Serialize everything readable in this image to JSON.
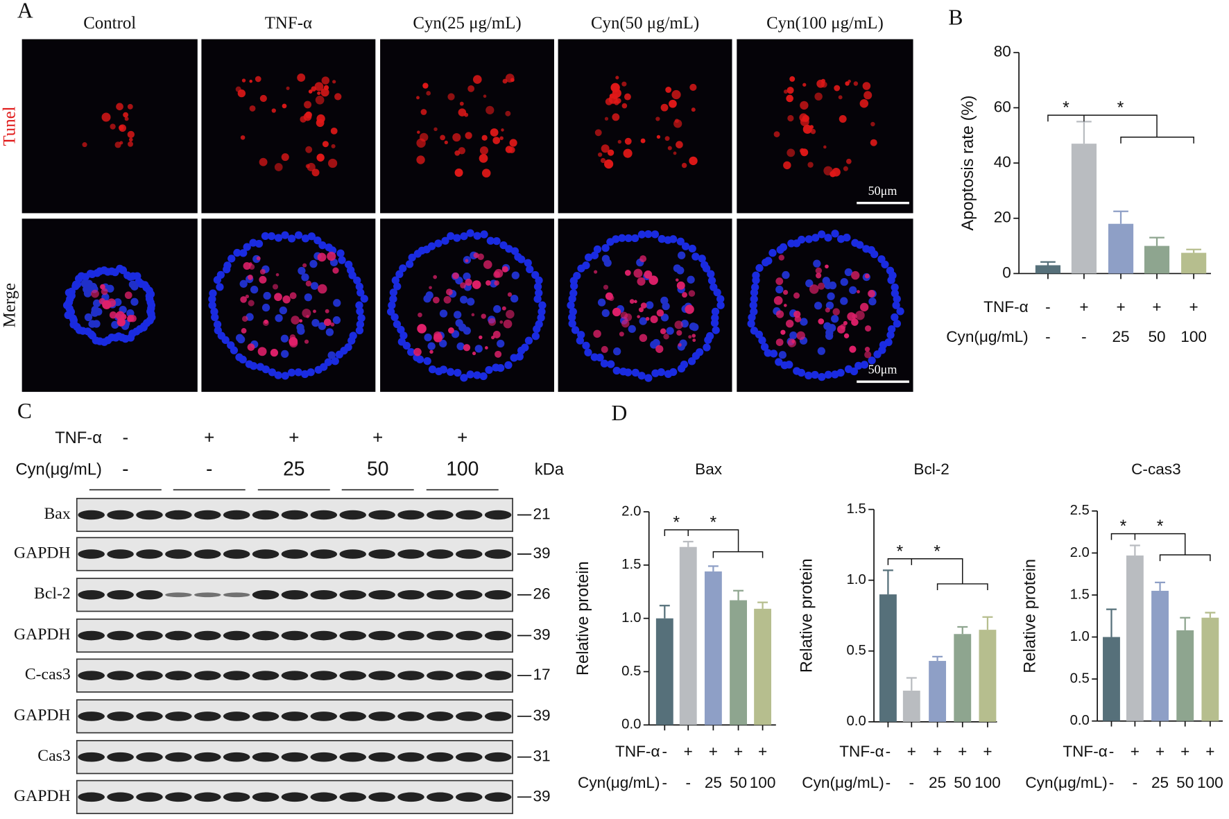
{
  "panel_a": {
    "label": "A",
    "columns": [
      "Control",
      "TNF-α",
      "Cyn(25 μg/mL)",
      "Cyn(50 μg/mL)",
      "Cyn(100 μg/mL)"
    ],
    "rows": [
      "Tunel",
      "Merge"
    ],
    "scale_bars": [
      "50μm",
      "50μm"
    ]
  },
  "panel_c": {
    "label": "C",
    "conditions": [
      {
        "name": "TNF-α",
        "labels": [
          "-",
          "+",
          "+",
          "+",
          "+"
        ]
      },
      {
        "name": "Cyn(μg/mL)",
        "labels": [
          "-",
          "-",
          "25",
          "50",
          "100"
        ]
      }
    ],
    "unit": "kDa",
    "blots": [
      {
        "name": "Bax",
        "kda": 21
      },
      {
        "name": "GAPDH",
        "kda": 39
      },
      {
        "name": "Bcl-2",
        "kda": 26
      },
      {
        "name": "GAPDH",
        "kda": 39
      },
      {
        "name": "C-cas3",
        "kda": 17
      },
      {
        "name": "GAPDH",
        "kda": 39
      },
      {
        "name": "Cas3",
        "kda": 31
      },
      {
        "name": "GAPDH",
        "kda": 39
      }
    ]
  },
  "panel_d_label": "D",
  "chart_data": [
    {
      "type": "bar",
      "panel_label": "B",
      "ylabel": "Apoptosis rate (%)",
      "values": [
        3,
        47,
        18,
        10,
        7.5
      ],
      "errors": [
        1.2,
        8,
        4.5,
        3,
        1.2
      ],
      "colors": [
        "#56707a",
        "#b9bcc0",
        "#8e9fc6",
        "#8ea58f",
        "#b6be8e"
      ],
      "ylim": [
        0,
        80
      ],
      "yticks": [
        0,
        20,
        40,
        60,
        80
      ],
      "conditions": [
        {
          "name": "TNF-α",
          "labels": [
            "-",
            "+",
            "+",
            "+",
            "+"
          ]
        },
        {
          "name": "Cyn(μg/mL)",
          "labels": [
            "-",
            "-",
            "25",
            "50",
            "100"
          ]
        }
      ],
      "annotations": [
        "*",
        "*"
      ]
    },
    {
      "type": "bar",
      "title": "Bax",
      "ylabel": "Relative protein",
      "values": [
        1.0,
        1.67,
        1.44,
        1.17,
        1.09
      ],
      "errors": [
        0.12,
        0.05,
        0.05,
        0.09,
        0.06
      ],
      "colors": [
        "#56707a",
        "#b9bcc0",
        "#8e9fc6",
        "#8ea58f",
        "#b6be8e"
      ],
      "ylim": [
        0,
        2
      ],
      "yticks": [
        {
          "value": 0,
          "label": "0.0"
        },
        {
          "value": 0.5,
          "label": "0.5"
        },
        {
          "value": 1,
          "label": "1.0"
        },
        {
          "value": 1.5,
          "label": "1.5"
        },
        {
          "value": 2,
          "label": "2.0"
        }
      ],
      "conditions": [
        {
          "name": "TNF-α",
          "labels": [
            "-",
            "+",
            "+",
            "+",
            "+"
          ]
        },
        {
          "name": "Cyn(μg/mL)",
          "labels": [
            "-",
            "-",
            "25",
            "50",
            "100"
          ]
        }
      ],
      "annotations": [
        "*",
        "*"
      ]
    },
    {
      "type": "bar",
      "title": "Bcl-2",
      "ylabel": "Relative protein",
      "values": [
        0.9,
        0.22,
        0.43,
        0.62,
        0.65
      ],
      "errors": [
        0.17,
        0.09,
        0.03,
        0.05,
        0.09
      ],
      "colors": [
        "#56707a",
        "#b9bcc0",
        "#8e9fc6",
        "#8ea58f",
        "#b6be8e"
      ],
      "ylim": [
        0,
        1.5
      ],
      "yticks": [
        {
          "value": 0,
          "label": "0.0"
        },
        {
          "value": 0.5,
          "label": "0.5"
        },
        {
          "value": 1,
          "label": "1.0"
        },
        {
          "value": 1.5,
          "label": "1.5"
        }
      ],
      "conditions": [
        {
          "name": "TNF-α",
          "labels": [
            "-",
            "+",
            "+",
            "+",
            "+"
          ]
        },
        {
          "name": "Cyn(μg/mL)",
          "labels": [
            "-",
            "-",
            "25",
            "50",
            "100"
          ]
        }
      ],
      "annotations": [
        "*",
        "*"
      ]
    },
    {
      "type": "bar",
      "title": "C-cas3",
      "ylabel": "Relative protein",
      "values": [
        1.0,
        1.97,
        1.55,
        1.08,
        1.23
      ],
      "errors": [
        0.33,
        0.12,
        0.1,
        0.15,
        0.06
      ],
      "colors": [
        "#56707a",
        "#b9bcc0",
        "#8e9fc6",
        "#8ea58f",
        "#b6be8e"
      ],
      "ylim": [
        0,
        2.5
      ],
      "yticks": [
        {
          "value": 0,
          "label": "0.0"
        },
        {
          "value": 0.5,
          "label": "0.5"
        },
        {
          "value": 1,
          "label": "1.0"
        },
        {
          "value": 1.5,
          "label": "1.5"
        },
        {
          "value": 2,
          "label": "2.0"
        },
        {
          "value": 2.5,
          "label": "2.5"
        }
      ],
      "conditions": [
        {
          "name": "TNF-α",
          "labels": [
            "-",
            "+",
            "+",
            "+",
            "+"
          ]
        },
        {
          "name": "Cyn(μg/mL)",
          "labels": [
            "-",
            "-",
            "25",
            "50",
            "100"
          ]
        }
      ],
      "annotations": [
        "*",
        "*"
      ]
    }
  ]
}
